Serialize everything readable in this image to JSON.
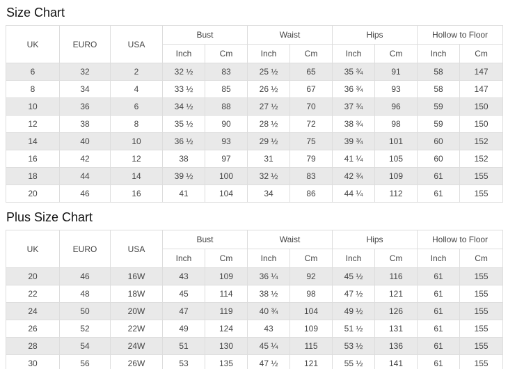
{
  "colors": {
    "stripe": "#e9e9e9",
    "border": "#dddddd",
    "text": "#444444",
    "title_text": "#111111"
  },
  "chart_data": [
    {
      "type": "table",
      "title": "Size Chart",
      "header": {
        "uk": "UK",
        "euro": "EURO",
        "usa": "USA",
        "groups": [
          "Bust",
          "Waist",
          "Hips",
          "Hollow to Floor"
        ],
        "subheaders": [
          "Inch",
          "Cm"
        ]
      },
      "rows": [
        [
          "6",
          "32",
          "2",
          "32 ½",
          "83",
          "25 ½",
          "65",
          "35 ¾",
          "91",
          "58",
          "147"
        ],
        [
          "8",
          "34",
          "4",
          "33 ½",
          "85",
          "26 ½",
          "67",
          "36 ¾",
          "93",
          "58",
          "147"
        ],
        [
          "10",
          "36",
          "6",
          "34 ½",
          "88",
          "27 ½",
          "70",
          "37 ¾",
          "96",
          "59",
          "150"
        ],
        [
          "12",
          "38",
          "8",
          "35 ½",
          "90",
          "28 ½",
          "72",
          "38 ¾",
          "98",
          "59",
          "150"
        ],
        [
          "14",
          "40",
          "10",
          "36 ½",
          "93",
          "29 ½",
          "75",
          "39 ¾",
          "101",
          "60",
          "152"
        ],
        [
          "16",
          "42",
          "12",
          "38",
          "97",
          "31",
          "79",
          "41 ¼",
          "105",
          "60",
          "152"
        ],
        [
          "18",
          "44",
          "14",
          "39 ½",
          "100",
          "32 ½",
          "83",
          "42 ¾",
          "109",
          "61",
          "155"
        ],
        [
          "20",
          "46",
          "16",
          "41",
          "104",
          "34",
          "86",
          "44 ¼",
          "112",
          "61",
          "155"
        ]
      ]
    },
    {
      "type": "table",
      "title": "Plus Size Chart",
      "header": {
        "uk": "UK",
        "euro": "EURO",
        "usa": "USA",
        "groups": [
          "Bust",
          "Waist",
          "Hips",
          "Hollow to Floor"
        ],
        "subheaders": [
          "Inch",
          "Cm"
        ]
      },
      "rows": [
        [
          "20",
          "46",
          "16W",
          "43",
          "109",
          "36 ¼",
          "92",
          "45 ½",
          "116",
          "61",
          "155"
        ],
        [
          "22",
          "48",
          "18W",
          "45",
          "114",
          "38 ½",
          "98",
          "47 ½",
          "121",
          "61",
          "155"
        ],
        [
          "24",
          "50",
          "20W",
          "47",
          "119",
          "40 ¾",
          "104",
          "49 ½",
          "126",
          "61",
          "155"
        ],
        [
          "26",
          "52",
          "22W",
          "49",
          "124",
          "43",
          "109",
          "51 ½",
          "131",
          "61",
          "155"
        ],
        [
          "28",
          "54",
          "24W",
          "51",
          "130",
          "45 ¼",
          "115",
          "53 ½",
          "136",
          "61",
          "155"
        ],
        [
          "30",
          "56",
          "26W",
          "53",
          "135",
          "47 ½",
          "121",
          "55 ½",
          "141",
          "61",
          "155"
        ]
      ]
    }
  ]
}
